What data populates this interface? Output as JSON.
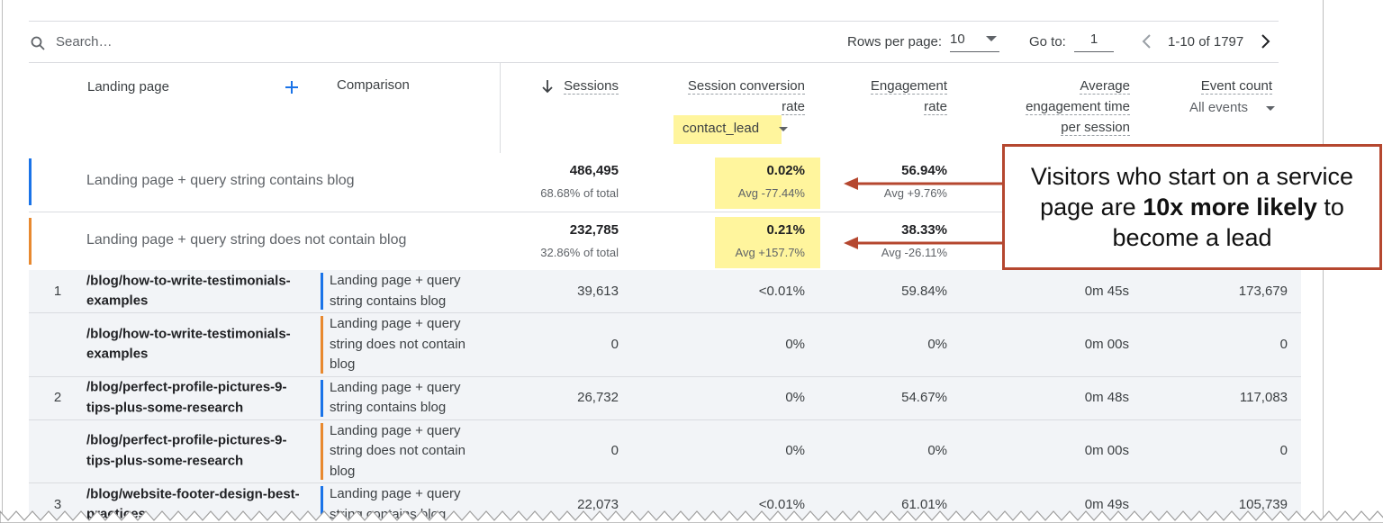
{
  "toolbar": {
    "search_placeholder": "Search…",
    "rows_per_page_label": "Rows per page:",
    "rows_per_page": "10",
    "go_to_label": "Go to:",
    "go_to": "1",
    "pagination": "1-10 of 1797"
  },
  "table": {
    "columns": {
      "landing_page": "Landing page",
      "comparison": "Comparison",
      "sessions": "Sessions",
      "conversion": "Session conversion rate",
      "engagement": "Engagement rate",
      "avg_time": "Average engagement time per session",
      "events": "Event count"
    },
    "conversion_filter": "contact_lead",
    "event_filter": "All events",
    "summary": [
      {
        "label": "Landing page + query string contains blog",
        "color": "#1a73e8",
        "sessions": "486,495",
        "sessions_share": "68.68% of total",
        "conversion": "0.02%",
        "conversion_avg": "Avg -77.44%",
        "engagement": "56.94%",
        "engagement_avg": "Avg +9.76%"
      },
      {
        "label": "Landing page + query string does not contain blog",
        "color": "#e8892f",
        "sessions": "232,785",
        "sessions_share": "32.86% of total",
        "conversion": "0.21%",
        "conversion_avg": "Avg +157.7%",
        "engagement": "38.33%",
        "engagement_avg": "Avg -26.11%"
      }
    ],
    "rows": [
      {
        "index": "1",
        "page": "/blog/how-to-write-testimonials-examples",
        "comparison": "Landing page + query string contains blog",
        "color": "#1a73e8",
        "sessions": "39,613",
        "conversion": "<0.01%",
        "engagement": "59.84%",
        "avg_time": "0m 45s",
        "events": "173,679"
      },
      {
        "page": "/blog/how-to-write-testimonials-examples",
        "comparison": "Landing page + query string does not contain blog",
        "color": "#e8892f",
        "sessions": "0",
        "conversion": "0%",
        "engagement": "0%",
        "avg_time": "0m 00s",
        "events": "0"
      },
      {
        "index": "2",
        "page": "/blog/perfect-profile-pictures-9-tips-plus-some-research",
        "comparison": "Landing page + query string contains blog",
        "color": "#1a73e8",
        "sessions": "26,732",
        "conversion": "0%",
        "engagement": "54.67%",
        "avg_time": "0m 48s",
        "events": "117,083"
      },
      {
        "page": "/blog/perfect-profile-pictures-9-tips-plus-some-research",
        "comparison": "Landing page + query string does not contain blog",
        "color": "#e8892f",
        "sessions": "0",
        "conversion": "0%",
        "engagement": "0%",
        "avg_time": "0m 00s",
        "events": "0"
      },
      {
        "index": "3",
        "page": "/blog/website-footer-design-best-practices",
        "comparison": "Landing page + query string contains blog",
        "color": "#1a73e8",
        "sessions": "22,073",
        "conversion": "<0.01%",
        "engagement": "61.01%",
        "avg_time": "0m 49s",
        "events": "105,739"
      }
    ]
  },
  "annotation": {
    "text_before": "Visitors who start on a service page are ",
    "emphasis": "10x more likely",
    "text_after": " to become a lead"
  }
}
